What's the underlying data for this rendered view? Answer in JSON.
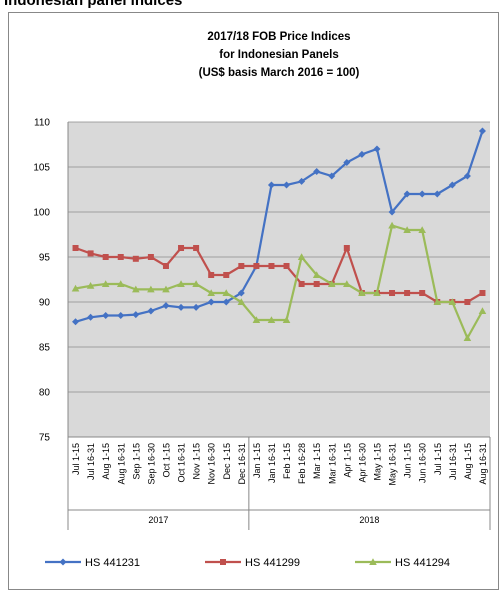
{
  "page_header": "Indonesian panel indices",
  "chart_data": {
    "type": "line",
    "title": [
      "2017/18 FOB Price Indices",
      "for Indonesian Panels",
      "(US$ basis March 2016 = 100)"
    ],
    "groups": [
      {
        "name": "2017",
        "categories": [
          "Jul 1-15",
          "Jul 16-31",
          "Aug 1-15",
          "Aug 16-31",
          "Sep 1-15",
          "Sep 16-30",
          "Oct 1-15",
          "Oct 16-31",
          "Nov 1-15",
          "Nov 16-30",
          "Dec 1-15",
          "Dec 16-31"
        ]
      },
      {
        "name": "2018",
        "categories": [
          "Jan 1-15",
          "Jan 16-31",
          "Feb 1-15",
          "Feb 16-28",
          "Mar 1-15",
          "Mar 16-31",
          "Apr 1-15",
          "Apr 16-30",
          "May 1-15",
          "May 16-31",
          "Jun 1-15",
          "Jun 16-30",
          "Jul 1-15",
          "Jul 16-31",
          "Aug 1-15",
          "Aug 16-31"
        ]
      }
    ],
    "series": [
      {
        "name": "HS 441231",
        "color": "#4472c4",
        "marker": "diamond",
        "values": [
          87.8,
          88.3,
          88.5,
          88.5,
          88.6,
          89,
          89.6,
          89.4,
          89.4,
          90,
          90,
          91,
          94,
          103,
          103,
          103.4,
          104.5,
          104,
          105.5,
          106.4,
          107,
          100,
          102,
          102,
          102,
          103,
          104,
          109
        ]
      },
      {
        "name": "HS 441299",
        "color": "#c0504d",
        "marker": "square",
        "values": [
          96,
          95.4,
          95,
          95,
          94.8,
          95,
          94,
          96,
          96,
          93,
          93,
          94,
          94,
          94,
          94,
          92,
          92,
          92,
          96,
          91,
          91,
          91,
          91,
          91,
          90,
          90,
          90,
          91
        ]
      },
      {
        "name": "HS 441294",
        "color": "#9bbb59",
        "marker": "triangle",
        "values": [
          91.5,
          91.8,
          92,
          92,
          91.4,
          91.4,
          91.4,
          92,
          92,
          91,
          91,
          90,
          88,
          88,
          88,
          95,
          93,
          92,
          92,
          91,
          91,
          98.5,
          98,
          98,
          90,
          90,
          86,
          89
        ]
      }
    ],
    "ylim": [
      75,
      110
    ],
    "yticks": [
      75,
      80,
      85,
      90,
      95,
      100,
      105,
      110
    ],
    "grid": true,
    "legend": "bottom"
  }
}
